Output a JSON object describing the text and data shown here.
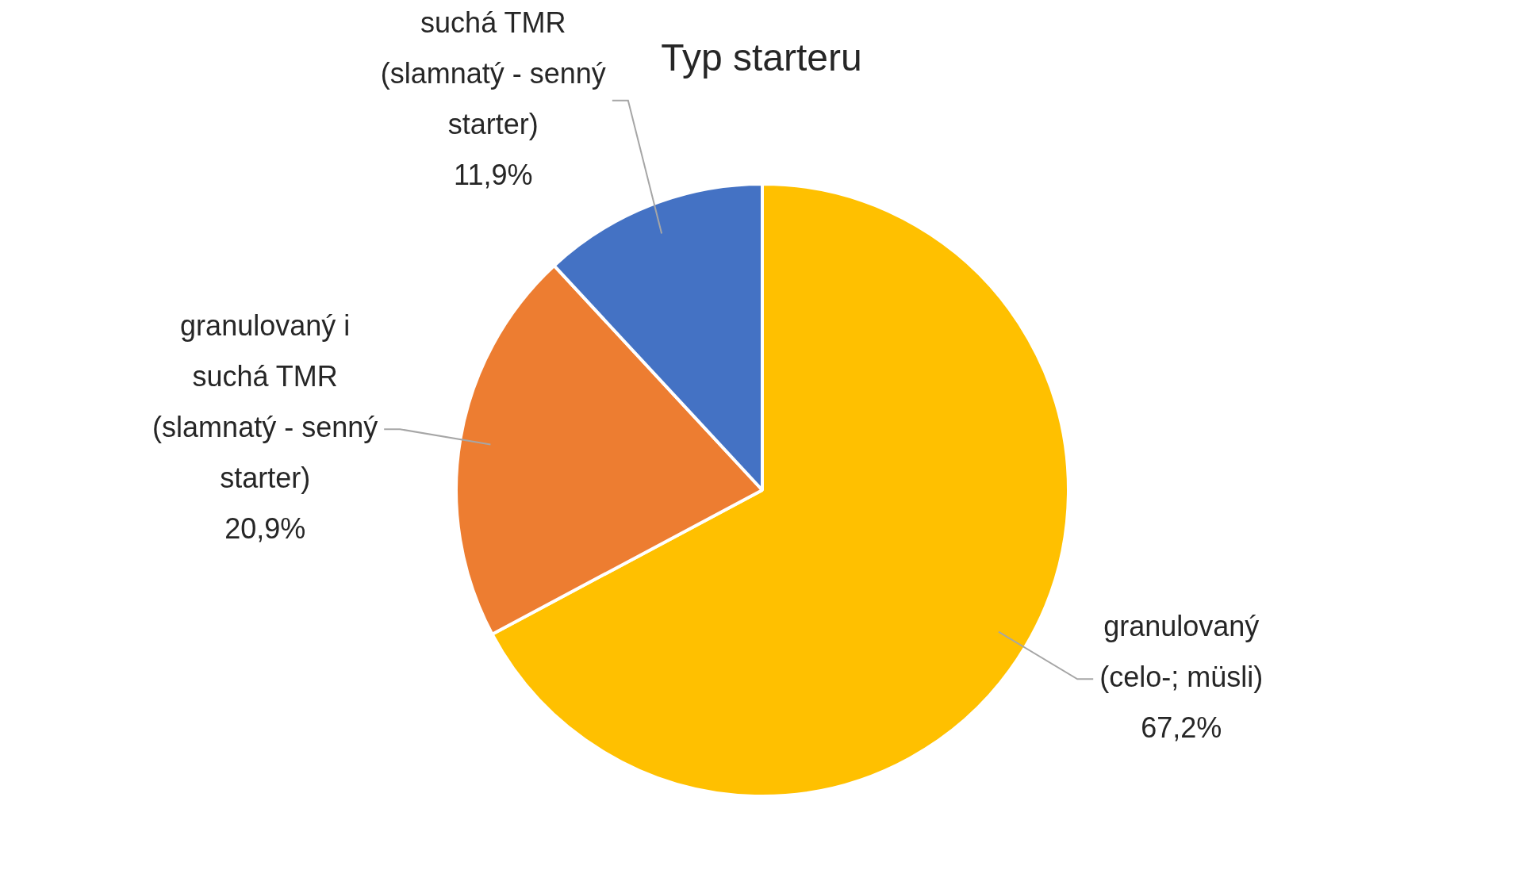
{
  "chart_data": {
    "type": "pie",
    "title": "Typ starteru",
    "categories": [
      "granulovaný (celo-; müsli)",
      "granulovaný i suchá TMR (slamnatý - senný starter)",
      "suchá TMR (slamnatý - senný starter)"
    ],
    "values": [
      67.2,
      20.9,
      11.9
    ],
    "value_labels": [
      "67,2%",
      "20,9%",
      "11,9%"
    ],
    "colors": [
      "#ffc000",
      "#ed7d31",
      "#4472c4"
    ],
    "legend": false
  }
}
